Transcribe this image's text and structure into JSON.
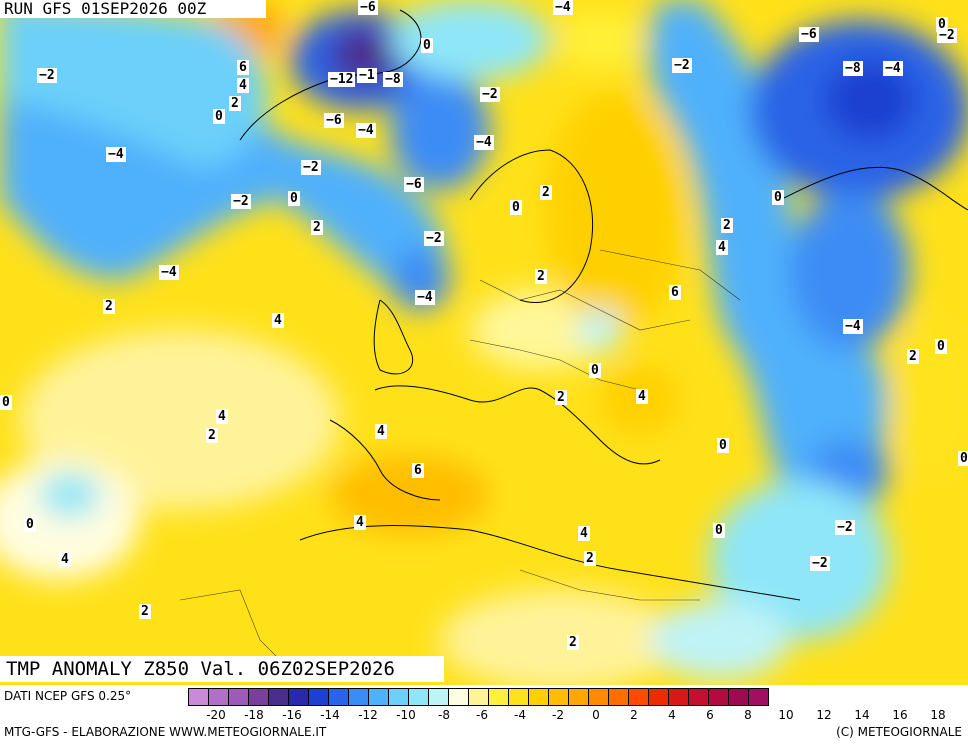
{
  "header": {
    "run_label": "RUN GFS 01SEP2026 00Z"
  },
  "title": {
    "text": "TMP ANOMALY Z850 Val. 06Z02SEP2026"
  },
  "footer": {
    "source": "DATI NCEP GFS 0.25°",
    "credit_left": "MTG-GFS - ELABORAZIONE WWW.METEOGIORNALE.IT",
    "credit_right": "(C) METEOGIORNALE"
  },
  "legend": {
    "ticks": [
      "-20",
      "-18",
      "-16",
      "-14",
      "-12",
      "-10",
      "-8",
      "-6",
      "-4",
      "-2",
      "0",
      "2",
      "4",
      "6",
      "8",
      "10",
      "12",
      "14",
      "16",
      "18",
      "20"
    ],
    "colors": [
      "#c98ad6",
      "#b070c8",
      "#9a5cb6",
      "#7a3f9c",
      "#4b2e8c",
      "#2a2aa8",
      "#1f3fd0",
      "#2a64e6",
      "#3c8cf5",
      "#4fb0fb",
      "#6cd0fa",
      "#8ee6f8",
      "#bff3f6",
      "#fffde0",
      "#fff39a",
      "#fff03c",
      "#ffe31a",
      "#ffd000",
      "#ffbd00",
      "#ffa800",
      "#ff8c00",
      "#ff6e00",
      "#ff4a00",
      "#f02a00",
      "#d81818",
      "#c41030",
      "#b00c40",
      "#9c0a50",
      "#a01060"
    ]
  },
  "contour_labels": [
    {
      "text": "-6",
      "id": "c1"
    },
    {
      "text": "-4",
      "id": "c2"
    },
    {
      "text": "0",
      "id": "c3"
    },
    {
      "text": "-2",
      "id": "c4"
    },
    {
      "text": "-6",
      "id": "c5"
    },
    {
      "text": "-2",
      "id": "c6"
    },
    {
      "text": "-2",
      "id": "c7"
    },
    {
      "text": "6",
      "id": "c8"
    },
    {
      "text": "-12",
      "id": "c9"
    },
    {
      "text": "-1",
      "id": "c10"
    },
    {
      "text": "-8",
      "id": "c11"
    },
    {
      "text": "-8",
      "id": "c12"
    },
    {
      "text": "-4",
      "id": "c13"
    },
    {
      "text": "4",
      "id": "c14"
    },
    {
      "text": "2",
      "id": "c15"
    },
    {
      "text": "0",
      "id": "c16"
    },
    {
      "text": "-6",
      "id": "c17"
    },
    {
      "text": "-4",
      "id": "c18"
    },
    {
      "text": "-2",
      "id": "c19"
    },
    {
      "text": "-4",
      "id": "c20"
    },
    {
      "text": "-4",
      "id": "c21"
    },
    {
      "text": "-2",
      "id": "c22"
    },
    {
      "text": "-6",
      "id": "c23"
    },
    {
      "text": "2",
      "id": "c24"
    },
    {
      "text": "-2",
      "id": "c25"
    },
    {
      "text": "0",
      "id": "c26"
    },
    {
      "text": "0",
      "id": "c27"
    },
    {
      "text": "0",
      "id": "c28"
    },
    {
      "text": "2",
      "id": "c29"
    },
    {
      "text": "-2",
      "id": "c30"
    },
    {
      "text": "2",
      "id": "c31"
    },
    {
      "text": "4",
      "id": "c32"
    },
    {
      "text": "-4",
      "id": "c33"
    },
    {
      "text": "2",
      "id": "c34"
    },
    {
      "text": "-4",
      "id": "c35"
    },
    {
      "text": "6",
      "id": "c36"
    },
    {
      "text": "2",
      "id": "c37"
    },
    {
      "text": "4",
      "id": "c38"
    },
    {
      "text": "-4",
      "id": "c39"
    },
    {
      "text": "2",
      "id": "c40"
    },
    {
      "text": "0",
      "id": "c41"
    },
    {
      "text": "0",
      "id": "c42"
    },
    {
      "text": "0",
      "id": "c43"
    },
    {
      "text": "2",
      "id": "c44"
    },
    {
      "text": "4",
      "id": "c45"
    },
    {
      "text": "4",
      "id": "c46"
    },
    {
      "text": "2",
      "id": "c47"
    },
    {
      "text": "4",
      "id": "c48"
    },
    {
      "text": "0",
      "id": "c49"
    },
    {
      "text": "6",
      "id": "c50"
    },
    {
      "text": "4",
      "id": "c51"
    },
    {
      "text": "0",
      "id": "c52"
    },
    {
      "text": "-2",
      "id": "c53"
    },
    {
      "text": "0",
      "id": "c54"
    },
    {
      "text": "4",
      "id": "c55"
    },
    {
      "text": "4",
      "id": "c56"
    },
    {
      "text": "2",
      "id": "c57"
    },
    {
      "text": "-2",
      "id": "c58"
    },
    {
      "text": "2",
      "id": "c59"
    },
    {
      "text": "2",
      "id": "c60"
    },
    {
      "text": "0",
      "id": "c61"
    },
    {
      "text": "0",
      "id": "c62"
    }
  ]
}
